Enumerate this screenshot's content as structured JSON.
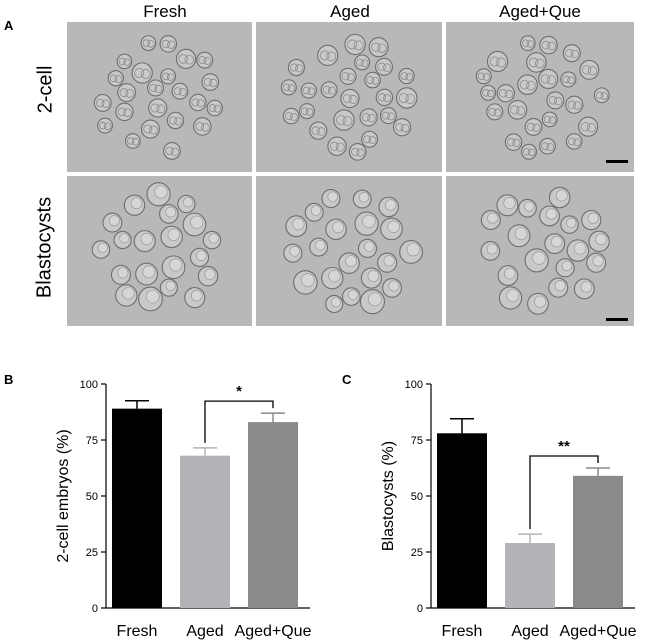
{
  "figure": {
    "panel_a": {
      "letter": "A",
      "columns": [
        "Fresh",
        "Aged",
        "Aged+Que"
      ],
      "rows": [
        "2-cell",
        "Blastocysts"
      ]
    },
    "panel_b": {
      "letter": "B"
    },
    "panel_c": {
      "letter": "C"
    }
  },
  "chart_data": [
    {
      "type": "bar",
      "panel": "B",
      "categories": [
        "Fresh",
        "Aged",
        "Aged+Que"
      ],
      "values": [
        89,
        68,
        83
      ],
      "errors": [
        3.5,
        3.5,
        4
      ],
      "colors": [
        "#000000",
        "#b4b4b8",
        "#8a8a8a"
      ],
      "xlabel": "",
      "ylabel": "2-cell embryos (%)",
      "ylim": [
        0,
        100
      ],
      "yticks": [
        0,
        25,
        50,
        75,
        100
      ],
      "significance": {
        "from": 1,
        "to": 2,
        "label": "*"
      }
    },
    {
      "type": "bar",
      "panel": "C",
      "categories": [
        "Fresh",
        "Aged",
        "Aged+Que"
      ],
      "values": [
        78,
        29,
        59
      ],
      "errors": [
        6.5,
        4,
        3.5
      ],
      "colors": [
        "#000000",
        "#b4b4b8",
        "#8a8a8a"
      ],
      "xlabel": "",
      "ylabel": "Blastocysts (%)",
      "ylim": [
        0,
        100
      ],
      "yticks": [
        0,
        25,
        50,
        75,
        100
      ],
      "significance": {
        "from": 1,
        "to": 2,
        "label": "**"
      }
    }
  ]
}
